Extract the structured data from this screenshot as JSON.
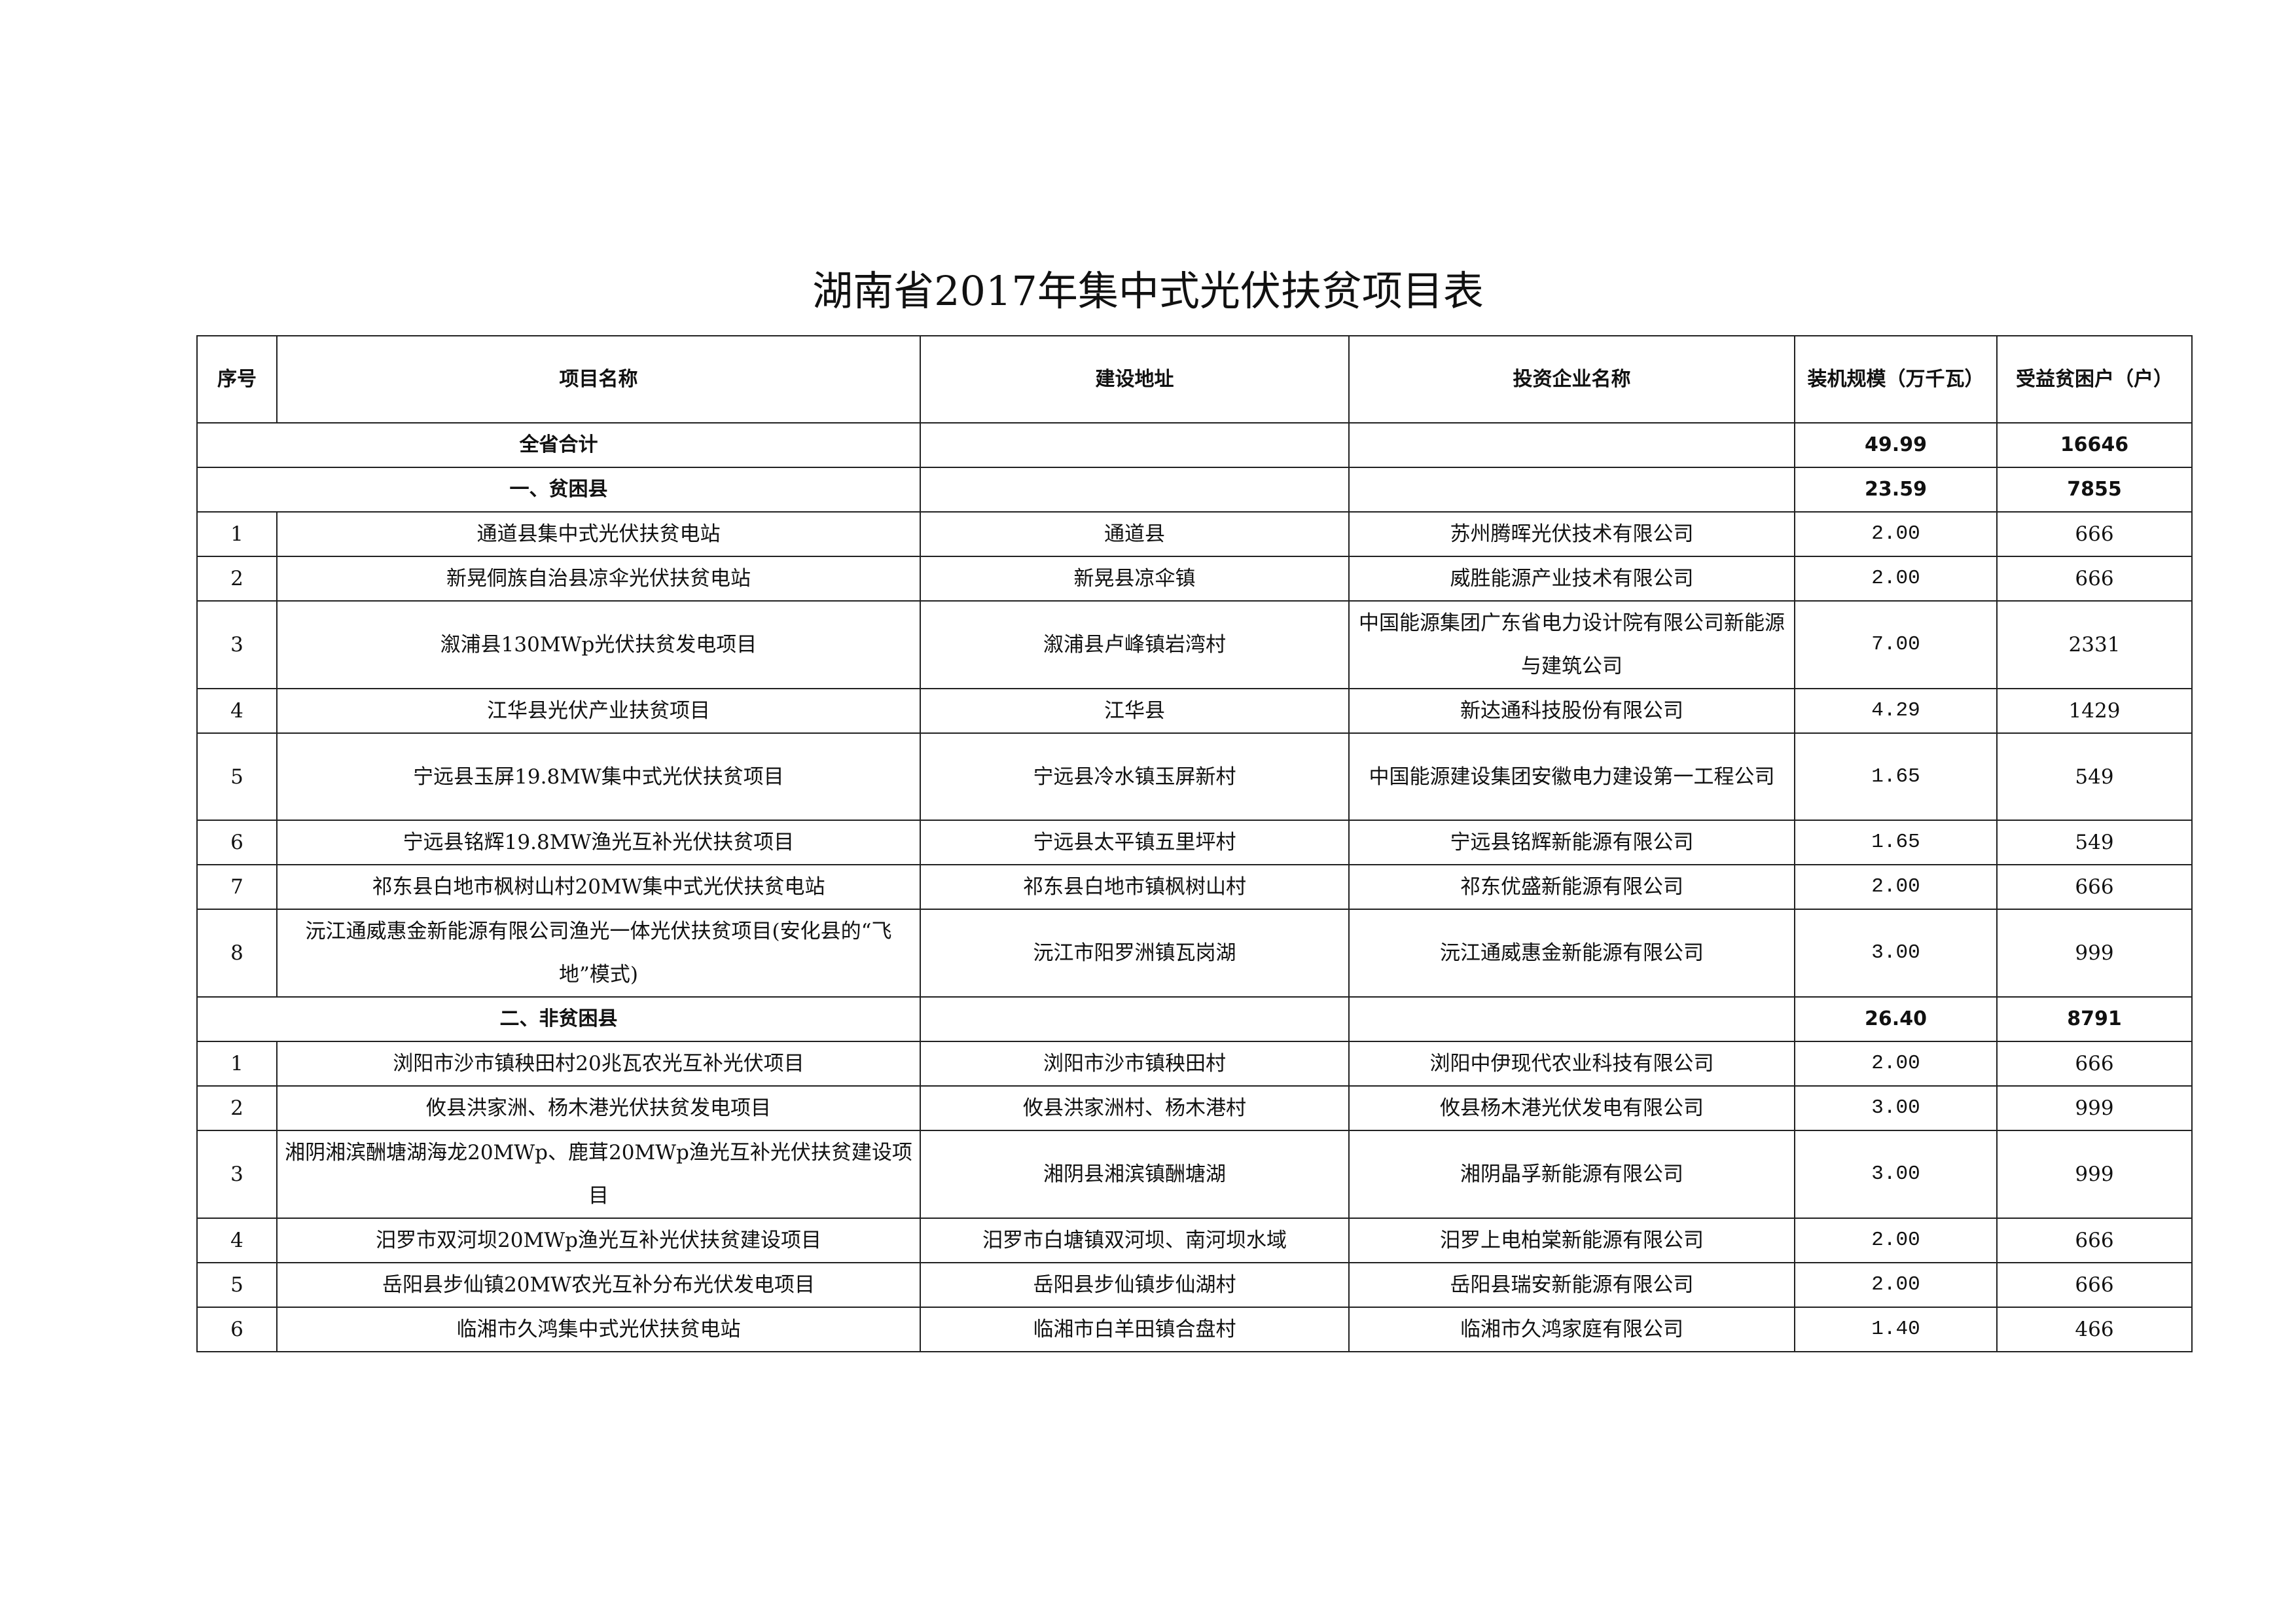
{
  "title": "湖南省2017年集中式光伏扶贫项目表",
  "columns": [
    "序号",
    "项目名称",
    "建设地址",
    "投资企业名称",
    "装机规模（万千瓦）",
    "受益贫困户（户）"
  ],
  "total": {
    "label": "全省合计",
    "capacity": "49.99",
    "households": "16646"
  },
  "sections": [
    {
      "label": "一、贫困县",
      "capacity": "23.59",
      "households": "7855",
      "rows": [
        {
          "no": "1",
          "name": "通道县集中式光伏扶贫电站",
          "location": "通道县",
          "company": "苏州腾晖光伏技术有限公司",
          "capacity": "2.00",
          "households": "666"
        },
        {
          "no": "2",
          "name": "新晃侗族自治县凉伞光伏扶贫电站",
          "location": "新晃县凉伞镇",
          "company": "威胜能源产业技术有限公司",
          "capacity": "2.00",
          "households": "666"
        },
        {
          "no": "3",
          "name": "溆浦县130MWp光伏扶贫发电项目",
          "location": "溆浦县卢峰镇岩湾村",
          "company": "中国能源集团广东省电力设计院有限公司新能源与建筑公司",
          "capacity": "7.00",
          "households": "2331"
        },
        {
          "no": "4",
          "name": "江华县光伏产业扶贫项目",
          "location": "江华县",
          "company": "新达通科技股份有限公司",
          "capacity": "4.29",
          "households": "1429"
        },
        {
          "no": "5",
          "name": "宁远县玉屏19.8MW集中式光伏扶贫项目",
          "location": "宁远县冷水镇玉屏新村",
          "company": "中国能源建设集团安徽电力建设第一工程公司",
          "capacity": "1.65",
          "households": "549"
        },
        {
          "no": "6",
          "name": "宁远县铭辉19.8MW渔光互补光伏扶贫项目",
          "location": "宁远县太平镇五里坪村",
          "company": "宁远县铭辉新能源有限公司",
          "capacity": "1.65",
          "households": "549"
        },
        {
          "no": "7",
          "name": "祁东县白地市枫树山村20MW集中式光伏扶贫电站",
          "location": "祁东县白地市镇枫树山村",
          "company": "祁东优盛新能源有限公司",
          "capacity": "2.00",
          "households": "666"
        },
        {
          "no": "8",
          "name": "沅江通威惠金新能源有限公司渔光一体光伏扶贫项目(安化县的“飞地”模式)",
          "location": "沅江市阳罗洲镇瓦岗湖",
          "company": "沅江通威惠金新能源有限公司",
          "capacity": "3.00",
          "households": "999"
        }
      ]
    },
    {
      "label": "二、非贫困县",
      "capacity": "26.40",
      "households": "8791",
      "rows": [
        {
          "no": "1",
          "name": "浏阳市沙市镇秧田村20兆瓦农光互补光伏项目",
          "location": "浏阳市沙市镇秧田村",
          "company": "浏阳中伊现代农业科技有限公司",
          "capacity": "2.00",
          "households": "666"
        },
        {
          "no": "2",
          "name": "攸县洪家洲、杨木港光伏扶贫发电项目",
          "location": "攸县洪家洲村、杨木港村",
          "company": "攸县杨木港光伏发电有限公司",
          "capacity": "3.00",
          "households": "999"
        },
        {
          "no": "3",
          "name": "湘阴湘滨酬塘湖海龙20MWp、鹿茸20MWp渔光互补光伏扶贫建设项目",
          "location": "湘阴县湘滨镇酬塘湖",
          "company": "湘阴晶孚新能源有限公司",
          "capacity": "3.00",
          "households": "999"
        },
        {
          "no": "4",
          "name": "汨罗市双河坝20MWp渔光互补光伏扶贫建设项目",
          "location": "汨罗市白塘镇双河坝、南河坝水域",
          "company": "汨罗上电柏棠新能源有限公司",
          "capacity": "2.00",
          "households": "666"
        },
        {
          "no": "5",
          "name": "岳阳县步仙镇20MW农光互补分布光伏发电项目",
          "location": "岳阳县步仙镇步仙湖村",
          "company": "岳阳县瑞安新能源有限公司",
          "capacity": "2.00",
          "households": "666"
        },
        {
          "no": "6",
          "name": "临湘市久鸿集中式光伏扶贫电站",
          "location": "临湘市白羊田镇合盘村",
          "company": "临湘市久鸿家庭有限公司",
          "capacity": "1.40",
          "households": "466"
        }
      ]
    }
  ]
}
